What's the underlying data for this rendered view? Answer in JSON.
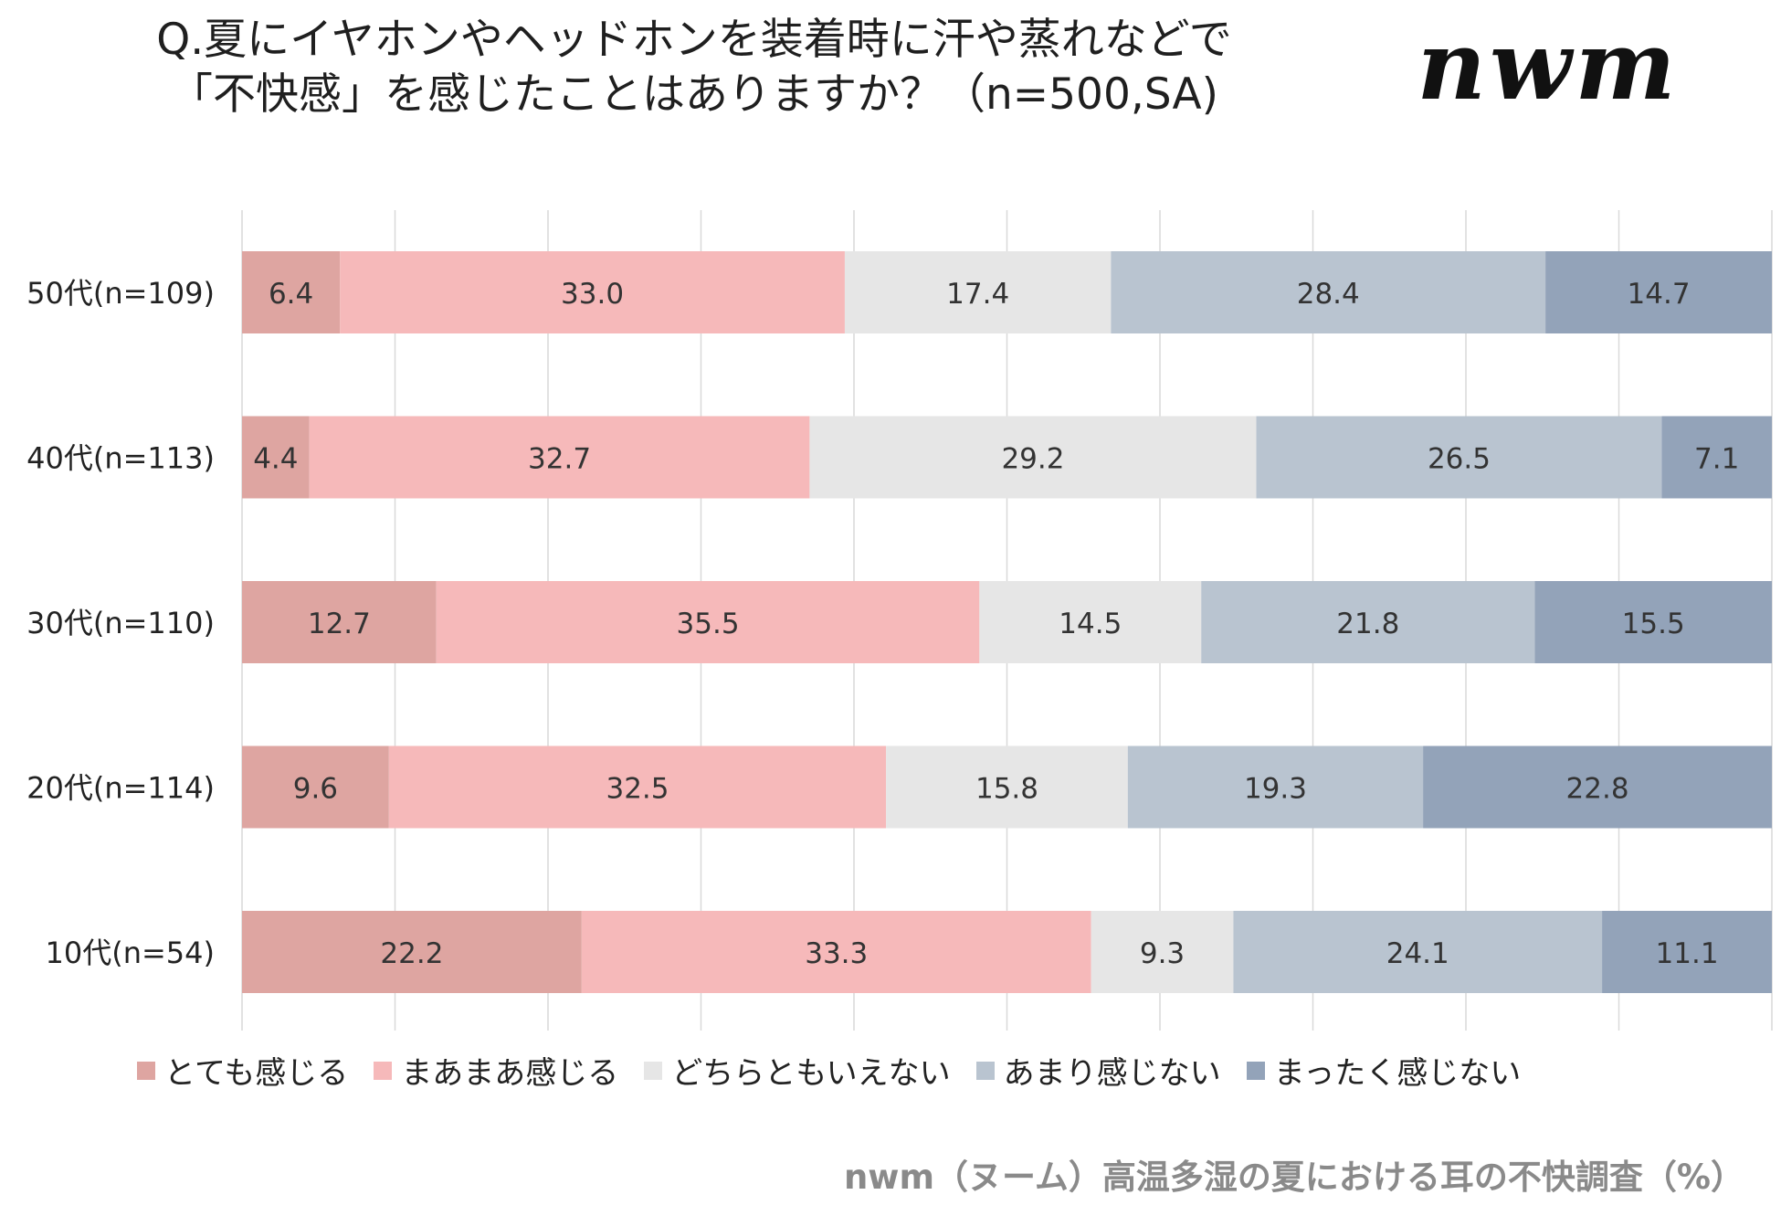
{
  "title": {
    "line1": "Q.夏にイヤホンやヘッドホンを装着時に汗や蒸れなどで",
    "line2": "「不快感」を感じたことはありますか？（n=500,SA)"
  },
  "logo": {
    "text": "nwm"
  },
  "footer": {
    "source": "nwm（ヌーム）高温多湿の夏における耳の不快調査（%）"
  },
  "chart_data": {
    "type": "bar",
    "orientation": "horizontal",
    "stacked": true,
    "title": "Q.夏にイヤホンやヘッドホンを装着時に汗や蒸れなどで「不快感」を感じたことはありますか？（n=500,SA)",
    "xlabel": "",
    "ylabel": "",
    "xlim": [
      0,
      100
    ],
    "grid": true,
    "legend_position": "bottom",
    "categories": [
      "50代(n=109)",
      "40代(n=113)",
      "30代(n=110)",
      "20代(n=114)",
      "10代(n=54)"
    ],
    "series": [
      {
        "name": "とても感じる",
        "color": "#dea5a1",
        "values": [
          6.4,
          4.4,
          12.7,
          9.6,
          22.2
        ]
      },
      {
        "name": "まあまあ感じる",
        "color": "#f6b9ba",
        "values": [
          33.0,
          32.7,
          35.5,
          32.5,
          33.3
        ]
      },
      {
        "name": "どちらともいえない",
        "color": "#e6e6e6",
        "values": [
          17.4,
          29.2,
          14.5,
          15.8,
          9.3
        ]
      },
      {
        "name": "あまり感じない",
        "color": "#b9c4d0",
        "values": [
          28.4,
          26.5,
          21.8,
          19.3,
          24.1
        ]
      },
      {
        "name": "まったく感じない",
        "color": "#93a3b9",
        "values": [
          14.7,
          7.1,
          15.5,
          22.8,
          11.1
        ]
      }
    ]
  }
}
